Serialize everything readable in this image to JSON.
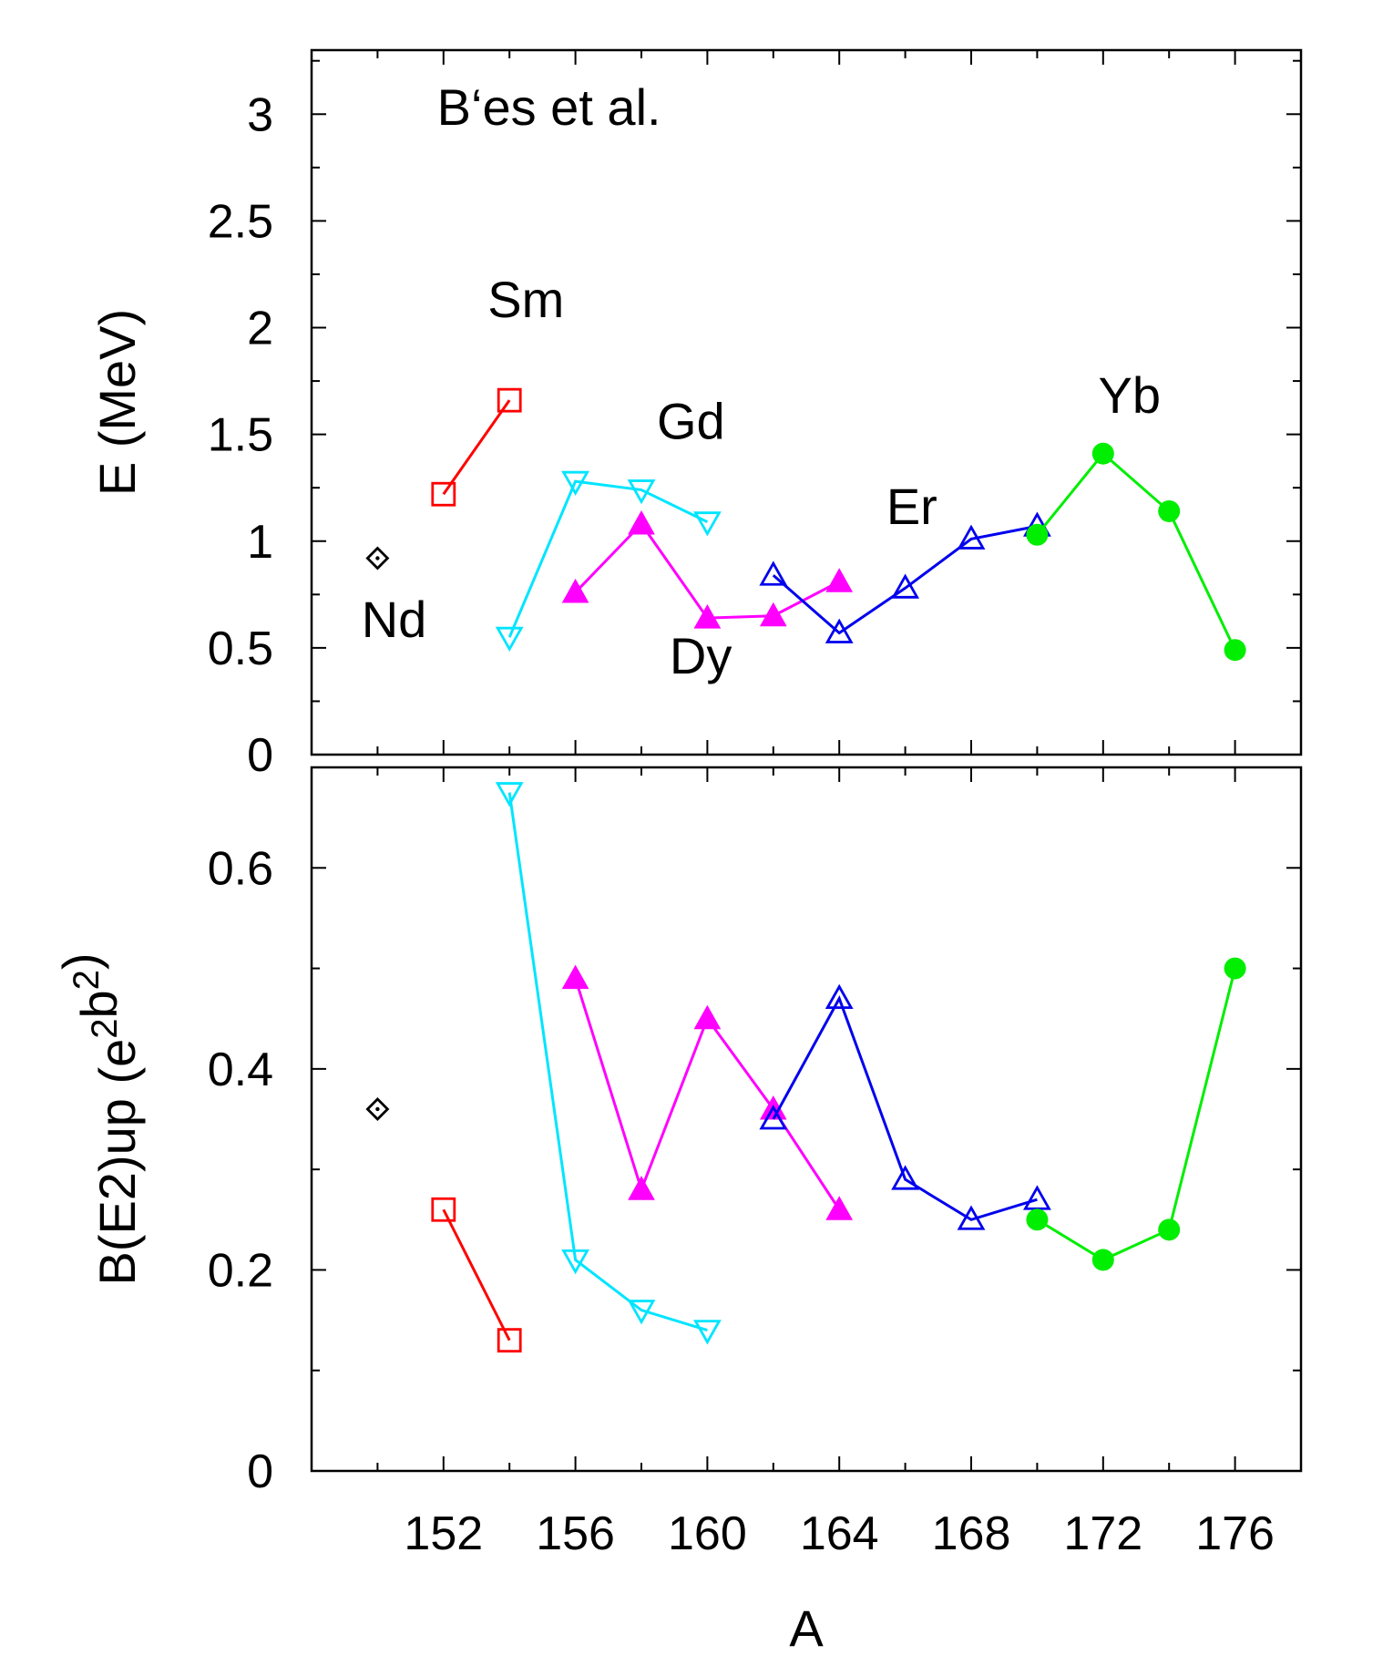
{
  "chart_data": [
    {
      "type": "line",
      "panel": "top",
      "title": "",
      "xlabel": "",
      "ylabel": "E (MeV)",
      "xlim": [
        148,
        178
      ],
      "ylim": [
        0,
        3.3
      ],
      "yticks": [
        0,
        0.5,
        1,
        1.5,
        2,
        2.5,
        3
      ],
      "ytick_labels": [
        "0",
        "0.5",
        "1",
        "1.5",
        "2",
        "2.5",
        "3"
      ],
      "annotations": [
        {
          "text": "B‘es et al.",
          "x": 155.2,
          "y": 2.95
        },
        {
          "text": "Sm",
          "x": 154.5,
          "y": 2.05
        },
        {
          "text": "Gd",
          "x": 159.5,
          "y": 1.48
        },
        {
          "text": "Nd",
          "x": 150.5,
          "y": 0.55
        },
        {
          "text": "Dy",
          "x": 159.8,
          "y": 0.38
        },
        {
          "text": "Er",
          "x": 166.2,
          "y": 1.08
        },
        {
          "text": "Yb",
          "x": 172.8,
          "y": 1.6
        }
      ],
      "series": [
        {
          "name": "Nd",
          "color": "#000000",
          "marker": "diamond-dot",
          "x": [
            150
          ],
          "y": [
            0.92
          ]
        },
        {
          "name": "Sm",
          "color": "#ff0000",
          "marker": "square-open",
          "x": [
            152,
            154
          ],
          "y": [
            1.22,
            1.66
          ]
        },
        {
          "name": "Gd",
          "color": "#00e5ff",
          "marker": "triangle-down-open",
          "x": [
            154,
            156,
            158,
            160
          ],
          "y": [
            0.55,
            1.28,
            1.24,
            1.09
          ]
        },
        {
          "name": "Dy",
          "color": "#ff00ff",
          "marker": "triangle-up-filled",
          "x": [
            156,
            158,
            160,
            162,
            164
          ],
          "y": [
            0.76,
            1.08,
            0.64,
            0.65,
            0.81
          ]
        },
        {
          "name": "Er",
          "color": "#0000ee",
          "marker": "triangle-up-open",
          "x": [
            162,
            164,
            166,
            168,
            170
          ],
          "y": [
            0.84,
            0.57,
            0.78,
            1.01,
            1.07
          ]
        },
        {
          "name": "Yb",
          "color": "#00ee00",
          "marker": "circle-filled",
          "x": [
            170,
            172,
            174,
            176
          ],
          "y": [
            1.03,
            1.41,
            1.14,
            0.49
          ]
        }
      ]
    },
    {
      "type": "line",
      "panel": "bottom",
      "title": "",
      "xlabel": "A",
      "ylabel": "B(E2)up (e²b²)",
      "xlim": [
        148,
        178
      ],
      "ylim": [
        0,
        0.7
      ],
      "xticks": [
        152,
        156,
        160,
        164,
        168,
        172,
        176
      ],
      "xtick_labels": [
        "152",
        "156",
        "160",
        "164",
        "168",
        "172",
        "176"
      ],
      "yticks": [
        0,
        0.2,
        0.4,
        0.6
      ],
      "ytick_labels": [
        "0",
        "0.2",
        "0.4",
        "0.6"
      ],
      "series": [
        {
          "name": "Nd",
          "color": "#000000",
          "marker": "diamond-dot",
          "x": [
            150
          ],
          "y": [
            0.36
          ]
        },
        {
          "name": "Sm",
          "color": "#ff0000",
          "marker": "square-open",
          "x": [
            152,
            154
          ],
          "y": [
            0.26,
            0.13
          ]
        },
        {
          "name": "Gd",
          "color": "#00e5ff",
          "marker": "triangle-down-open",
          "x": [
            154,
            156,
            158,
            160
          ],
          "y": [
            0.675,
            0.21,
            0.16,
            0.14
          ]
        },
        {
          "name": "Dy",
          "color": "#ff00ff",
          "marker": "triangle-up-filled",
          "x": [
            156,
            158,
            160,
            162,
            164
          ],
          "y": [
            0.49,
            0.28,
            0.45,
            0.36,
            0.26
          ]
        },
        {
          "name": "Er",
          "color": "#0000ee",
          "marker": "triangle-up-open",
          "x": [
            162,
            164,
            166,
            168,
            170
          ],
          "y": [
            0.35,
            0.47,
            0.29,
            0.25,
            0.27
          ]
        },
        {
          "name": "Yb",
          "color": "#00ee00",
          "marker": "circle-filled",
          "x": [
            170,
            172,
            174,
            176
          ],
          "y": [
            0.25,
            0.21,
            0.24,
            0.5
          ]
        }
      ]
    }
  ]
}
